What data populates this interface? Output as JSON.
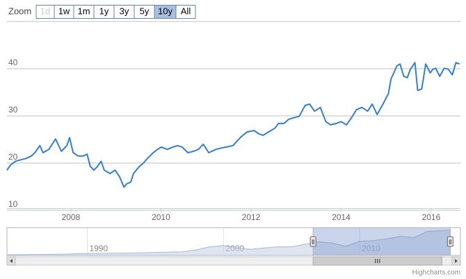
{
  "range_selector": {
    "label": "Zoom",
    "buttons": [
      "1d",
      "1w",
      "1m",
      "1y",
      "3y",
      "5y",
      "10y",
      "All"
    ],
    "selected": 6,
    "disabled": [
      0
    ]
  },
  "credits": "Highcharts.com",
  "chart_data": [
    {
      "type": "line",
      "color": "#2f7ed8",
      "grid": true,
      "xlim": [
        2006.58,
        2016.65
      ],
      "xticks": [
        2008,
        2010,
        2012,
        2014,
        2016
      ],
      "ylim": [
        10,
        50
      ],
      "yticks": [
        10,
        20,
        30,
        40
      ],
      "x": [
        2006.58,
        2006.66,
        2006.77,
        2006.89,
        2007.01,
        2007.12,
        2007.2,
        2007.31,
        2007.38,
        2007.51,
        2007.66,
        2007.79,
        2007.91,
        2007.97,
        2008.05,
        2008.16,
        2008.28,
        2008.36,
        2008.43,
        2008.51,
        2008.59,
        2008.67,
        2008.74,
        2008.87,
        2008.98,
        2009.08,
        2009.18,
        2009.24,
        2009.33,
        2009.39,
        2009.52,
        2009.61,
        2009.7,
        2009.83,
        2009.92,
        2010.01,
        2010.14,
        2010.26,
        2010.37,
        2010.47,
        2010.6,
        2010.72,
        2010.83,
        2010.94,
        2011.06,
        2011.22,
        2011.34,
        2011.45,
        2011.6,
        2011.76,
        2011.91,
        2012.07,
        2012.17,
        2012.27,
        2012.39,
        2012.53,
        2012.61,
        2012.73,
        2012.84,
        2012.95,
        2013.07,
        2013.2,
        2013.3,
        2013.41,
        2013.54,
        2013.66,
        2013.77,
        2013.89,
        2014.0,
        2014.12,
        2014.23,
        2014.34,
        2014.46,
        2014.59,
        2014.69,
        2014.8,
        2014.93,
        2015.05,
        2015.11,
        2015.17,
        2015.24,
        2015.31,
        2015.39,
        2015.47,
        2015.54,
        2015.64,
        2015.7,
        2015.79,
        2015.88,
        2015.98,
        2016.04,
        2016.1,
        2016.19,
        2016.29,
        2016.38,
        2016.47,
        2016.55,
        2016.63
      ],
      "values": [
        18.5,
        19.6,
        20.4,
        20.7,
        21.0,
        21.5,
        22.2,
        23.7,
        22.2,
        22.9,
        25.1,
        22.5,
        23.7,
        25.4,
        22.2,
        21.5,
        21.5,
        21.9,
        19.3,
        18.5,
        19.3,
        20.4,
        18.5,
        17.8,
        18.5,
        17.1,
        14.9,
        15.6,
        16.0,
        17.8,
        19.3,
        20.0,
        21.0,
        22.2,
        22.9,
        23.4,
        22.9,
        23.4,
        23.7,
        23.4,
        22.2,
        22.5,
        22.9,
        24.0,
        22.2,
        22.9,
        23.2,
        23.4,
        23.7,
        25.4,
        26.6,
        26.9,
        26.2,
        25.9,
        26.6,
        27.4,
        28.4,
        28.4,
        29.3,
        29.6,
        29.9,
        32.2,
        32.5,
        31.0,
        31.8,
        28.8,
        28.1,
        28.4,
        28.8,
        28.1,
        29.6,
        31.3,
        31.8,
        31.0,
        32.5,
        30.3,
        32.5,
        34.7,
        37.9,
        39.1,
        40.6,
        41.0,
        38.4,
        38.1,
        39.9,
        41.3,
        35.4,
        35.7,
        41.0,
        39.1,
        39.9,
        40.1,
        38.4,
        40.1,
        39.9,
        38.7,
        41.3,
        41.0
      ]
    },
    {
      "type": "area",
      "color": "#c8d3e6",
      "xlim": [
        1984.1,
        2017.4
      ],
      "xticks": [
        1990,
        2000,
        2010
      ],
      "ylim": [
        0,
        45
      ],
      "x": [
        1984.1,
        1988,
        1990,
        1994,
        1997,
        1998,
        1999,
        2000,
        2001,
        2002,
        2003,
        2004,
        2005,
        2006,
        2007,
        2008,
        2009,
        2010,
        2011,
        2012,
        2013,
        2014,
        2015,
        2016,
        2016.65
      ],
      "values": [
        1,
        2,
        3,
        4,
        6,
        9,
        14,
        16,
        12,
        10,
        12,
        14,
        14,
        18,
        22,
        20,
        15,
        23,
        24,
        27,
        31,
        29,
        39,
        40,
        41
      ]
    }
  ]
}
